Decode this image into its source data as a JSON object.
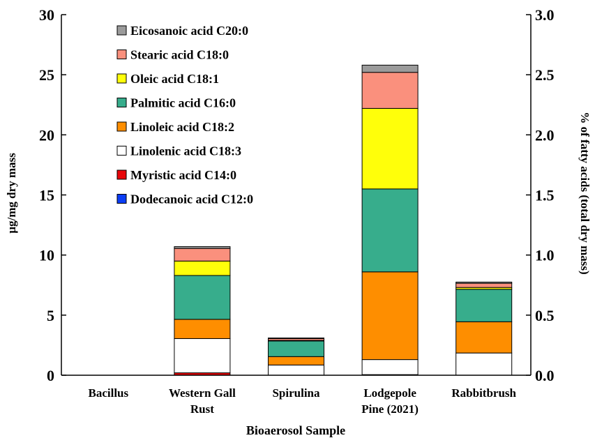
{
  "chart_data": {
    "type": "bar",
    "stacked": true,
    "title": "",
    "xlabel": "Bioaerosol Sample",
    "ylabel": "µg/mg dry mass",
    "y2label": "% of fatty acids (total dry mass)",
    "ylim": [
      0,
      30
    ],
    "y2lim": [
      0,
      3.0
    ],
    "yticks": [
      "0",
      "5",
      "10",
      "15",
      "20",
      "25",
      "30"
    ],
    "y2ticks": [
      "0.0",
      "0.5",
      "1.0",
      "1.5",
      "2.0",
      "2.5",
      "3.0"
    ],
    "grid": false,
    "legend_position": "top-left",
    "categories": [
      {
        "line1": "Bacillus",
        "line2": ""
      },
      {
        "line1": "Western Gall",
        "line2": "Rust"
      },
      {
        "line1": "Spirulina",
        "line2": ""
      },
      {
        "line1": "Lodgepole",
        "line2": "Pine (2021)"
      },
      {
        "line1": "Rabbitbrush",
        "line2": ""
      }
    ],
    "series": [
      {
        "name": "Dodecanoic acid C12:0",
        "color": "#0b3df5",
        "values": [
          0,
          0,
          0,
          0,
          0
        ]
      },
      {
        "name": "Myristic acid C14:0",
        "color": "#e8060a",
        "values": [
          0,
          0.2,
          0,
          0.05,
          0
        ]
      },
      {
        "name": "Linolenic acid C18:3",
        "color": "#ffffff",
        "values": [
          0,
          2.85,
          0.85,
          1.25,
          1.85
        ]
      },
      {
        "name": "Linoleic acid C18:2",
        "color": "#fe8e00",
        "values": [
          0,
          1.6,
          0.7,
          7.3,
          2.6
        ]
      },
      {
        "name": "Palmitic acid C16:0",
        "color": "#37ad8c",
        "values": [
          0,
          3.65,
          1.3,
          6.9,
          2.7
        ]
      },
      {
        "name": "Oleic acid C18:1",
        "color": "#ffff0a",
        "values": [
          0,
          1.2,
          0.05,
          6.7,
          0.15
        ]
      },
      {
        "name": "Stearic acid C18:0",
        "color": "#fa907d",
        "values": [
          0,
          1.05,
          0.15,
          3.0,
          0.35
        ]
      },
      {
        "name": "Eicosanoic acid C20:0",
        "color": "#9b9b9b",
        "values": [
          0,
          0.15,
          0.05,
          0.6,
          0.1
        ]
      }
    ]
  }
}
